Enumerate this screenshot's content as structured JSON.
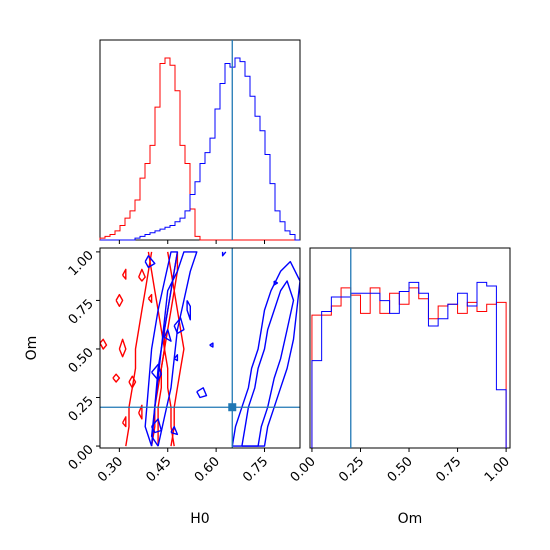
{
  "chart_data": {
    "type": "corner",
    "colors": {
      "series_a": "#ff0000",
      "series_b": "#0000ff",
      "truth": "#1f77b4"
    },
    "truths": {
      "H0": 0.65,
      "Om": 0.2
    },
    "axes": {
      "H0": {
        "label": "H0",
        "range": [
          0.24,
          0.86
        ],
        "ticks": [
          "0.30",
          "0.45",
          "0.60",
          "0.75"
        ],
        "tick_values": [
          0.3,
          0.45,
          0.6,
          0.75
        ]
      },
      "Om": {
        "label": "Om",
        "range": [
          -0.01,
          1.02
        ],
        "ticks": [
          "0.00",
          "0.25",
          "0.50",
          "0.75",
          "1.00"
        ],
        "tick_values": [
          0.0,
          0.25,
          0.5,
          0.75,
          1.0
        ]
      }
    },
    "h0_hist": {
      "bin_edges": [
        0.24,
        0.2555,
        0.271,
        0.2865,
        0.302,
        0.3175,
        0.333,
        0.3485,
        0.364,
        0.3795,
        0.395,
        0.4105,
        0.426,
        0.4415,
        0.457,
        0.4725,
        0.488,
        0.5035,
        0.519,
        0.5345,
        0.55,
        0.5655,
        0.581,
        0.5965,
        0.612,
        0.6275,
        0.643,
        0.6585,
        0.674,
        0.6895,
        0.705,
        0.7205,
        0.736,
        0.7515,
        0.767,
        0.7825,
        0.798,
        0.8135,
        0.829,
        0.8445,
        0.86
      ],
      "red": [
        0.01,
        0.02,
        0.03,
        0.05,
        0.08,
        0.12,
        0.16,
        0.22,
        0.34,
        0.42,
        0.52,
        0.73,
        0.97,
        1.0,
        0.96,
        0.82,
        0.52,
        0.42,
        0.17,
        0.02,
        0.0,
        0.0,
        0.0,
        0.0,
        0.0,
        0.0,
        0.0,
        0.0,
        0.0,
        0.0,
        0.0,
        0.0,
        0.0,
        0.0,
        0.0,
        0.0,
        0.0,
        0.0,
        0.0,
        0.0
      ],
      "blue": [
        0.0,
        0.0,
        0.0,
        0.0,
        0.0,
        0.0,
        0.0,
        0.01,
        0.02,
        0.03,
        0.04,
        0.05,
        0.06,
        0.07,
        0.08,
        0.1,
        0.12,
        0.16,
        0.25,
        0.32,
        0.42,
        0.48,
        0.56,
        0.72,
        0.86,
        0.97,
        0.95,
        1.0,
        0.98,
        0.9,
        0.79,
        0.68,
        0.6,
        0.47,
        0.31,
        0.16,
        0.1,
        0.05,
        0.03,
        0.0
      ]
    },
    "om_hist": {
      "bin_edges": [
        0.0,
        0.05,
        0.1,
        0.15,
        0.2,
        0.25,
        0.3,
        0.35,
        0.4,
        0.45,
        0.5,
        0.55,
        0.6,
        0.65,
        0.7,
        0.75,
        0.8,
        0.85,
        0.9,
        0.95,
        1.0
      ],
      "red": [
        0.73,
        0.73,
        0.78,
        0.88,
        0.84,
        0.74,
        0.88,
        0.74,
        0.85,
        0.79,
        0.88,
        0.82,
        0.71,
        0.78,
        0.79,
        0.74,
        0.8,
        0.75,
        0.79,
        0.8
      ],
      "blue": [
        0.48,
        0.75,
        0.83,
        0.83,
        0.85,
        0.85,
        0.85,
        0.81,
        0.74,
        0.86,
        0.91,
        0.85,
        0.67,
        0.71,
        0.79,
        0.85,
        0.78,
        0.91,
        0.89,
        0.32
      ]
    },
    "contours": {
      "red": [
        [
          [
            0.32,
            0.0
          ],
          [
            0.33,
            0.1
          ],
          [
            0.33,
            0.2
          ],
          [
            0.34,
            0.3
          ],
          [
            0.35,
            0.4
          ],
          [
            0.35,
            0.5
          ],
          [
            0.36,
            0.6
          ],
          [
            0.37,
            0.7
          ],
          [
            0.38,
            0.8
          ],
          [
            0.39,
            0.9
          ],
          [
            0.4,
            1.0
          ]
        ],
        [
          [
            0.39,
            1.0
          ],
          [
            0.4,
            0.9
          ],
          [
            0.41,
            0.8
          ],
          [
            0.42,
            0.7
          ],
          [
            0.43,
            0.6
          ],
          [
            0.44,
            0.5
          ],
          [
            0.45,
            0.4
          ],
          [
            0.45,
            0.3
          ],
          [
            0.46,
            0.2
          ],
          [
            0.46,
            0.1
          ],
          [
            0.47,
            0.0
          ]
        ],
        [
          [
            0.42,
            0.0
          ],
          [
            0.42,
            0.1
          ],
          [
            0.42,
            0.2
          ],
          [
            0.43,
            0.3
          ],
          [
            0.43,
            0.4
          ],
          [
            0.44,
            0.5
          ],
          [
            0.44,
            0.6
          ],
          [
            0.45,
            0.7
          ],
          [
            0.46,
            0.8
          ],
          [
            0.47,
            0.9
          ],
          [
            0.48,
            1.0
          ]
        ],
        [
          [
            0.48,
            1.0
          ],
          [
            0.48,
            0.9
          ],
          [
            0.47,
            0.8
          ],
          [
            0.46,
            0.7
          ],
          [
            0.45,
            0.6
          ],
          [
            0.44,
            0.5
          ],
          [
            0.43,
            0.4
          ],
          [
            0.42,
            0.3
          ],
          [
            0.41,
            0.2
          ],
          [
            0.41,
            0.1
          ],
          [
            0.4,
            0.0
          ]
        ],
        [
          [
            0.45,
            1.0
          ],
          [
            0.46,
            0.9
          ],
          [
            0.47,
            0.8
          ],
          [
            0.48,
            0.7
          ],
          [
            0.49,
            0.6
          ],
          [
            0.5,
            0.5
          ],
          [
            0.49,
            0.4
          ],
          [
            0.48,
            0.3
          ],
          [
            0.47,
            0.2
          ],
          [
            0.47,
            0.1
          ],
          [
            0.46,
            0.0
          ]
        ],
        [
          [
            0.29,
            0.75
          ],
          [
            0.3,
            0.78
          ],
          [
            0.31,
            0.75
          ],
          [
            0.3,
            0.72
          ],
          [
            0.29,
            0.75
          ]
        ],
        [
          [
            0.31,
            0.88
          ],
          [
            0.32,
            0.91
          ],
          [
            0.32,
            0.86
          ],
          [
            0.31,
            0.88
          ]
        ],
        [
          [
            0.36,
            0.87
          ],
          [
            0.37,
            0.91
          ],
          [
            0.38,
            0.87
          ],
          [
            0.37,
            0.85
          ],
          [
            0.36,
            0.87
          ]
        ],
        [
          [
            0.39,
            0.76
          ],
          [
            0.4,
            0.78
          ],
          [
            0.4,
            0.74
          ],
          [
            0.39,
            0.76
          ]
        ],
        [
          [
            0.3,
            0.5
          ],
          [
            0.31,
            0.55
          ],
          [
            0.32,
            0.5
          ],
          [
            0.31,
            0.46
          ],
          [
            0.3,
            0.5
          ]
        ],
        [
          [
            0.28,
            0.35
          ],
          [
            0.29,
            0.37
          ],
          [
            0.3,
            0.35
          ],
          [
            0.29,
            0.33
          ],
          [
            0.28,
            0.35
          ]
        ],
        [
          [
            0.33,
            0.33
          ],
          [
            0.34,
            0.36
          ],
          [
            0.35,
            0.33
          ],
          [
            0.34,
            0.3
          ],
          [
            0.33,
            0.33
          ]
        ],
        [
          [
            0.36,
            0.17
          ],
          [
            0.37,
            0.21
          ],
          [
            0.37,
            0.14
          ],
          [
            0.36,
            0.17
          ]
        ],
        [
          [
            0.31,
            0.12
          ],
          [
            0.32,
            0.15
          ],
          [
            0.32,
            0.1
          ],
          [
            0.31,
            0.12
          ]
        ],
        [
          [
            0.24,
            0.53
          ],
          [
            0.25,
            0.55
          ],
          [
            0.26,
            0.52
          ],
          [
            0.25,
            0.5
          ],
          [
            0.24,
            0.53
          ]
        ]
      ],
      "blue": [
        [
          [
            0.65,
            0.0
          ],
          [
            0.66,
            0.1
          ],
          [
            0.68,
            0.2
          ],
          [
            0.7,
            0.3
          ],
          [
            0.71,
            0.4
          ],
          [
            0.73,
            0.5
          ],
          [
            0.74,
            0.6
          ],
          [
            0.75,
            0.7
          ],
          [
            0.77,
            0.8
          ],
          [
            0.8,
            0.9
          ],
          [
            0.83,
            0.95
          ],
          [
            0.86,
            0.85
          ],
          [
            0.85,
            0.7
          ],
          [
            0.84,
            0.55
          ],
          [
            0.82,
            0.4
          ],
          [
            0.8,
            0.3
          ],
          [
            0.78,
            0.2
          ],
          [
            0.76,
            0.1
          ],
          [
            0.75,
            0.0
          ],
          [
            0.65,
            0.0
          ]
        ],
        [
          [
            0.68,
            0.0
          ],
          [
            0.69,
            0.1
          ],
          [
            0.7,
            0.2
          ],
          [
            0.72,
            0.3
          ],
          [
            0.73,
            0.4
          ],
          [
            0.75,
            0.5
          ],
          [
            0.76,
            0.6
          ],
          [
            0.78,
            0.7
          ],
          [
            0.8,
            0.8
          ],
          [
            0.82,
            0.85
          ],
          [
            0.84,
            0.75
          ],
          [
            0.82,
            0.6
          ],
          [
            0.8,
            0.45
          ],
          [
            0.78,
            0.35
          ],
          [
            0.76,
            0.2
          ],
          [
            0.74,
            0.1
          ],
          [
            0.73,
            0.0
          ],
          [
            0.68,
            0.0
          ]
        ],
        [
          [
            0.42,
            0.0
          ],
          [
            0.44,
            0.15
          ],
          [
            0.46,
            0.3
          ],
          [
            0.47,
            0.45
          ],
          [
            0.48,
            0.6
          ],
          [
            0.5,
            0.75
          ],
          [
            0.52,
            0.9
          ],
          [
            0.54,
            1.0
          ],
          [
            0.5,
            1.0
          ],
          [
            0.48,
            0.9
          ],
          [
            0.45,
            0.8
          ],
          [
            0.44,
            0.65
          ],
          [
            0.43,
            0.5
          ],
          [
            0.42,
            0.35
          ],
          [
            0.41,
            0.2
          ],
          [
            0.4,
            0.05
          ],
          [
            0.42,
            0.0
          ]
        ],
        [
          [
            0.4,
            0.0
          ],
          [
            0.41,
            0.2
          ],
          [
            0.42,
            0.4
          ],
          [
            0.44,
            0.6
          ],
          [
            0.46,
            0.8
          ],
          [
            0.48,
            1.0
          ],
          [
            0.46,
            1.0
          ],
          [
            0.44,
            0.85
          ],
          [
            0.42,
            0.7
          ],
          [
            0.4,
            0.5
          ],
          [
            0.39,
            0.3
          ],
          [
            0.38,
            0.1
          ],
          [
            0.4,
            0.0
          ]
        ],
        [
          [
            0.51,
            0.75
          ],
          [
            0.52,
            0.72
          ],
          [
            0.52,
            0.65
          ],
          [
            0.51,
            0.7
          ],
          [
            0.51,
            0.75
          ]
        ],
        [
          [
            0.47,
            0.62
          ],
          [
            0.49,
            0.66
          ],
          [
            0.5,
            0.6
          ],
          [
            0.48,
            0.58
          ],
          [
            0.47,
            0.62
          ]
        ],
        [
          [
            0.44,
            0.56
          ],
          [
            0.45,
            0.6
          ],
          [
            0.46,
            0.54
          ],
          [
            0.44,
            0.56
          ]
        ],
        [
          [
            0.4,
            0.38
          ],
          [
            0.42,
            0.42
          ],
          [
            0.43,
            0.37
          ],
          [
            0.42,
            0.34
          ],
          [
            0.4,
            0.38
          ]
        ],
        [
          [
            0.4,
            0.1
          ],
          [
            0.42,
            0.14
          ],
          [
            0.43,
            0.08
          ],
          [
            0.41,
            0.07
          ],
          [
            0.4,
            0.1
          ]
        ],
        [
          [
            0.46,
            0.07
          ],
          [
            0.47,
            0.1
          ],
          [
            0.48,
            0.06
          ],
          [
            0.46,
            0.07
          ]
        ],
        [
          [
            0.38,
            0.95
          ],
          [
            0.39,
            0.98
          ],
          [
            0.41,
            0.94
          ],
          [
            0.39,
            0.92
          ],
          [
            0.38,
            0.95
          ]
        ],
        [
          [
            0.47,
            0.45
          ],
          [
            0.48,
            0.47
          ],
          [
            0.48,
            0.44
          ],
          [
            0.47,
            0.45
          ]
        ],
        [
          [
            0.58,
            0.52
          ],
          [
            0.59,
            0.53
          ],
          [
            0.59,
            0.51
          ],
          [
            0.58,
            0.52
          ]
        ],
        [
          [
            0.62,
            1.0
          ],
          [
            0.62,
            0.98
          ],
          [
            0.63,
            1.0
          ]
        ],
        [
          [
            0.78,
            0.85
          ],
          [
            0.79,
            0.84
          ],
          [
            0.78,
            0.83
          ],
          [
            0.78,
            0.85
          ]
        ],
        [
          [
            0.54,
            0.28
          ],
          [
            0.56,
            0.3
          ],
          [
            0.57,
            0.26
          ],
          [
            0.55,
            0.25
          ],
          [
            0.54,
            0.28
          ]
        ]
      ]
    }
  }
}
